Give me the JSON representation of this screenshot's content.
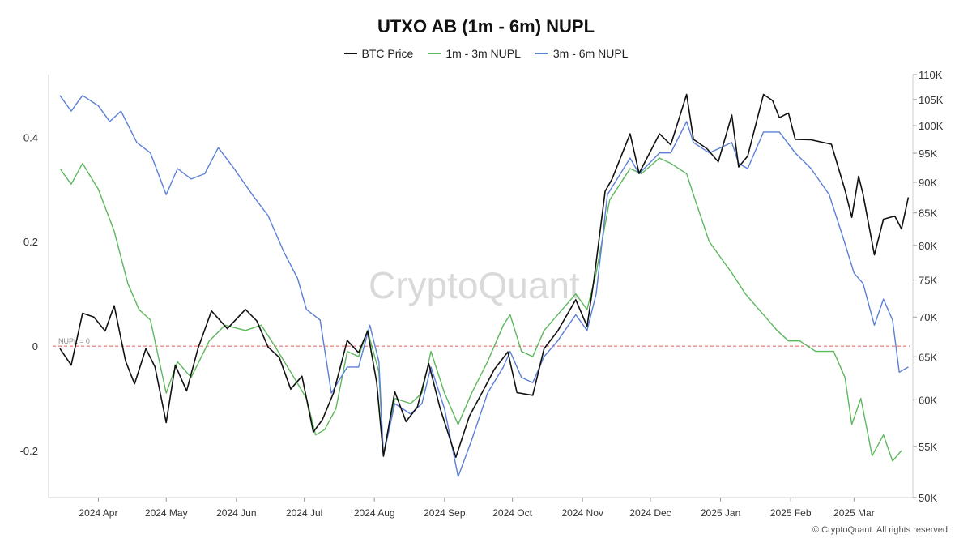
{
  "chart_data": {
    "type": "line",
    "title": "UTXO AB (1m - 6m) NUPL",
    "legend_placement": "top-center",
    "grid": false,
    "y_left_ticks": [
      "0.4",
      "0.2",
      "0",
      "-0.2"
    ],
    "y_left_tick_values": [
      0.4,
      0.2,
      0,
      -0.2
    ],
    "y_left_range": [
      -0.29,
      0.52
    ],
    "y_right_ticks": [
      "110K",
      "105K",
      "100K",
      "95K",
      "90K",
      "85K",
      "80K",
      "75K",
      "70K",
      "65K",
      "60K",
      "55K",
      "50K"
    ],
    "y_right_tick_values": [
      110000,
      105000,
      100000,
      95000,
      90000,
      85000,
      80000,
      75000,
      70000,
      65000,
      60000,
      55000,
      50000
    ],
    "y_right_range": [
      50000,
      110000
    ],
    "y_right_scale": "log",
    "x_range": [
      "2024-03-10",
      "2025-03-27"
    ],
    "x_ticks": [
      {
        "label": "2024 Apr",
        "date": "2024-04-01"
      },
      {
        "label": "2024 May",
        "date": "2024-05-01"
      },
      {
        "label": "2024 Jun",
        "date": "2024-06-01"
      },
      {
        "label": "2024 Jul",
        "date": "2024-07-01"
      },
      {
        "label": "2024 Aug",
        "date": "2024-08-01"
      },
      {
        "label": "2024 Sep",
        "date": "2024-09-01"
      },
      {
        "label": "2024 Oct",
        "date": "2024-10-01"
      },
      {
        "label": "2024 Nov",
        "date": "2024-11-01"
      },
      {
        "label": "2024 Dec",
        "date": "2024-12-01"
      },
      {
        "label": "2025 Jan",
        "date": "2025-01-01"
      },
      {
        "label": "2025 Feb",
        "date": "2025-02-01"
      },
      {
        "label": "2025 Mar",
        "date": "2025-03-01"
      }
    ],
    "reference_line": {
      "value": 0,
      "label": "NUPL = 0",
      "color": "#e05c5c"
    },
    "series": [
      {
        "name": "BTC Price",
        "axis": "right",
        "color": "#111111",
        "points": [
          [
            "2024-03-15",
            66000
          ],
          [
            "2024-03-20",
            64000
          ],
          [
            "2024-03-25",
            70500
          ],
          [
            "2024-03-30",
            70000
          ],
          [
            "2024-04-04",
            68200
          ],
          [
            "2024-04-08",
            71500
          ],
          [
            "2024-04-13",
            64500
          ],
          [
            "2024-04-17",
            61800
          ],
          [
            "2024-04-22",
            66000
          ],
          [
            "2024-04-26",
            63800
          ],
          [
            "2024-05-01",
            57500
          ],
          [
            "2024-05-05",
            64000
          ],
          [
            "2024-05-10",
            61000
          ],
          [
            "2024-05-15",
            66000
          ],
          [
            "2024-05-21",
            70800
          ],
          [
            "2024-05-28",
            68500
          ],
          [
            "2024-06-05",
            71000
          ],
          [
            "2024-06-10",
            69500
          ],
          [
            "2024-06-15",
            66200
          ],
          [
            "2024-06-20",
            64900
          ],
          [
            "2024-06-25",
            61200
          ],
          [
            "2024-06-30",
            62700
          ],
          [
            "2024-07-05",
            56500
          ],
          [
            "2024-07-09",
            57800
          ],
          [
            "2024-07-14",
            60800
          ],
          [
            "2024-07-20",
            67000
          ],
          [
            "2024-07-25",
            65500
          ],
          [
            "2024-07-29",
            68200
          ],
          [
            "2024-08-02",
            62000
          ],
          [
            "2024-08-05",
            54000
          ],
          [
            "2024-08-10",
            60900
          ],
          [
            "2024-08-15",
            57600
          ],
          [
            "2024-08-20",
            59200
          ],
          [
            "2024-08-25",
            64200
          ],
          [
            "2024-08-30",
            59100
          ],
          [
            "2024-09-06",
            53900
          ],
          [
            "2024-09-12",
            58200
          ],
          [
            "2024-09-18",
            61000
          ],
          [
            "2024-09-23",
            63500
          ],
          [
            "2024-09-29",
            65600
          ],
          [
            "2024-10-03",
            60800
          ],
          [
            "2024-10-10",
            60500
          ],
          [
            "2024-10-15",
            66000
          ],
          [
            "2024-10-21",
            68200
          ],
          [
            "2024-10-29",
            72300
          ],
          [
            "2024-11-03",
            68800
          ],
          [
            "2024-11-06",
            75000
          ],
          [
            "2024-11-11",
            88500
          ],
          [
            "2024-11-14",
            90500
          ],
          [
            "2024-11-22",
            98500
          ],
          [
            "2024-11-26",
            91500
          ],
          [
            "2024-12-05",
            98500
          ],
          [
            "2024-12-10",
            96500
          ],
          [
            "2024-12-17",
            106000
          ],
          [
            "2024-12-20",
            97500
          ],
          [
            "2024-12-26",
            95800
          ],
          [
            "2024-12-31",
            93500
          ],
          [
            "2025-01-06",
            102000
          ],
          [
            "2025-01-09",
            92600
          ],
          [
            "2025-01-13",
            94500
          ],
          [
            "2025-01-20",
            106000
          ],
          [
            "2025-01-24",
            104800
          ],
          [
            "2025-01-27",
            101500
          ],
          [
            "2025-01-31",
            102400
          ],
          [
            "2025-02-03",
            97500
          ],
          [
            "2025-02-10",
            97400
          ],
          [
            "2025-02-19",
            96600
          ],
          [
            "2025-02-25",
            88700
          ],
          [
            "2025-02-28",
            84300
          ],
          [
            "2025-03-03",
            91000
          ],
          [
            "2025-03-05",
            88000
          ],
          [
            "2025-03-10",
            78600
          ],
          [
            "2025-03-14",
            84000
          ],
          [
            "2025-03-19",
            84500
          ],
          [
            "2025-03-22",
            82500
          ],
          [
            "2025-03-25",
            87500
          ]
        ]
      },
      {
        "name": "1m - 3m NUPL",
        "axis": "left",
        "color": "#5cb85c",
        "points": [
          [
            "2024-03-15",
            0.34
          ],
          [
            "2024-03-20",
            0.31
          ],
          [
            "2024-03-25",
            0.35
          ],
          [
            "2024-04-01",
            0.3
          ],
          [
            "2024-04-08",
            0.22
          ],
          [
            "2024-04-14",
            0.12
          ],
          [
            "2024-04-19",
            0.07
          ],
          [
            "2024-04-24",
            0.05
          ],
          [
            "2024-05-01",
            -0.09
          ],
          [
            "2024-05-06",
            -0.03
          ],
          [
            "2024-05-12",
            -0.06
          ],
          [
            "2024-05-20",
            0.01
          ],
          [
            "2024-05-27",
            0.04
          ],
          [
            "2024-06-05",
            0.03
          ],
          [
            "2024-06-12",
            0.04
          ],
          [
            "2024-06-18",
            0.0
          ],
          [
            "2024-06-25",
            -0.05
          ],
          [
            "2024-07-02",
            -0.1
          ],
          [
            "2024-07-06",
            -0.17
          ],
          [
            "2024-07-10",
            -0.16
          ],
          [
            "2024-07-15",
            -0.12
          ],
          [
            "2024-07-20",
            -0.01
          ],
          [
            "2024-07-25",
            -0.02
          ],
          [
            "2024-07-29",
            0.03
          ],
          [
            "2024-08-03",
            -0.05
          ],
          [
            "2024-08-05",
            -0.21
          ],
          [
            "2024-08-10",
            -0.1
          ],
          [
            "2024-08-17",
            -0.11
          ],
          [
            "2024-08-22",
            -0.09
          ],
          [
            "2024-08-26",
            -0.01
          ],
          [
            "2024-09-01",
            -0.09
          ],
          [
            "2024-09-07",
            -0.15
          ],
          [
            "2024-09-13",
            -0.09
          ],
          [
            "2024-09-20",
            -0.03
          ],
          [
            "2024-09-27",
            0.04
          ],
          [
            "2024-09-30",
            0.06
          ],
          [
            "2024-10-05",
            -0.01
          ],
          [
            "2024-10-10",
            -0.02
          ],
          [
            "2024-10-15",
            0.03
          ],
          [
            "2024-10-21",
            0.06
          ],
          [
            "2024-10-29",
            0.1
          ],
          [
            "2024-11-03",
            0.07
          ],
          [
            "2024-11-07",
            0.14
          ],
          [
            "2024-11-13",
            0.28
          ],
          [
            "2024-11-22",
            0.34
          ],
          [
            "2024-11-27",
            0.33
          ],
          [
            "2024-12-05",
            0.36
          ],
          [
            "2024-12-10",
            0.35
          ],
          [
            "2024-12-17",
            0.33
          ],
          [
            "2024-12-20",
            0.29
          ],
          [
            "2024-12-27",
            0.2
          ],
          [
            "2025-01-06",
            0.14
          ],
          [
            "2025-01-12",
            0.1
          ],
          [
            "2025-01-20",
            0.06
          ],
          [
            "2025-01-26",
            0.03
          ],
          [
            "2025-01-31",
            0.01
          ],
          [
            "2025-02-05",
            0.01
          ],
          [
            "2025-02-12",
            -0.01
          ],
          [
            "2025-02-20",
            -0.01
          ],
          [
            "2025-02-25",
            -0.06
          ],
          [
            "2025-02-28",
            -0.15
          ],
          [
            "2025-03-04",
            -0.1
          ],
          [
            "2025-03-09",
            -0.21
          ],
          [
            "2025-03-14",
            -0.17
          ],
          [
            "2025-03-18",
            -0.22
          ],
          [
            "2025-03-22",
            -0.2
          ]
        ]
      },
      {
        "name": "3m - 6m NUPL",
        "axis": "left",
        "color": "#5b7fd6",
        "points": [
          [
            "2024-03-15",
            0.48
          ],
          [
            "2024-03-20",
            0.45
          ],
          [
            "2024-03-25",
            0.48
          ],
          [
            "2024-04-01",
            0.46
          ],
          [
            "2024-04-06",
            0.43
          ],
          [
            "2024-04-11",
            0.45
          ],
          [
            "2024-04-18",
            0.39
          ],
          [
            "2024-04-24",
            0.37
          ],
          [
            "2024-05-01",
            0.29
          ],
          [
            "2024-05-06",
            0.34
          ],
          [
            "2024-05-12",
            0.32
          ],
          [
            "2024-05-18",
            0.33
          ],
          [
            "2024-05-24",
            0.38
          ],
          [
            "2024-05-31",
            0.34
          ],
          [
            "2024-06-08",
            0.29
          ],
          [
            "2024-06-15",
            0.25
          ],
          [
            "2024-06-22",
            0.18
          ],
          [
            "2024-06-28",
            0.13
          ],
          [
            "2024-07-02",
            0.07
          ],
          [
            "2024-07-08",
            0.05
          ],
          [
            "2024-07-13",
            -0.09
          ],
          [
            "2024-07-20",
            -0.04
          ],
          [
            "2024-07-25",
            -0.04
          ],
          [
            "2024-07-30",
            0.04
          ],
          [
            "2024-08-03",
            -0.03
          ],
          [
            "2024-08-05",
            -0.21
          ],
          [
            "2024-08-10",
            -0.11
          ],
          [
            "2024-08-17",
            -0.13
          ],
          [
            "2024-08-22",
            -0.11
          ],
          [
            "2024-08-26",
            -0.04
          ],
          [
            "2024-09-01",
            -0.12
          ],
          [
            "2024-09-07",
            -0.25
          ],
          [
            "2024-09-13",
            -0.18
          ],
          [
            "2024-09-20",
            -0.09
          ],
          [
            "2024-09-27",
            -0.04
          ],
          [
            "2024-09-30",
            -0.01
          ],
          [
            "2024-10-05",
            -0.06
          ],
          [
            "2024-10-10",
            -0.07
          ],
          [
            "2024-10-15",
            -0.02
          ],
          [
            "2024-10-21",
            0.01
          ],
          [
            "2024-10-29",
            0.06
          ],
          [
            "2024-11-03",
            0.03
          ],
          [
            "2024-11-07",
            0.1
          ],
          [
            "2024-11-12",
            0.29
          ],
          [
            "2024-11-22",
            0.36
          ],
          [
            "2024-11-26",
            0.33
          ],
          [
            "2024-12-05",
            0.37
          ],
          [
            "2024-12-10",
            0.37
          ],
          [
            "2024-12-17",
            0.43
          ],
          [
            "2024-12-20",
            0.39
          ],
          [
            "2024-12-27",
            0.37
          ],
          [
            "2025-01-06",
            0.39
          ],
          [
            "2025-01-09",
            0.35
          ],
          [
            "2025-01-13",
            0.34
          ],
          [
            "2025-01-20",
            0.41
          ],
          [
            "2025-01-27",
            0.41
          ],
          [
            "2025-02-03",
            0.37
          ],
          [
            "2025-02-10",
            0.34
          ],
          [
            "2025-02-18",
            0.29
          ],
          [
            "2025-02-24",
            0.21
          ],
          [
            "2025-03-01",
            0.14
          ],
          [
            "2025-03-05",
            0.12
          ],
          [
            "2025-03-10",
            0.04
          ],
          [
            "2025-03-14",
            0.09
          ],
          [
            "2025-03-18",
            0.05
          ],
          [
            "2025-03-21",
            -0.05
          ],
          [
            "2025-03-25",
            -0.04
          ]
        ]
      }
    ]
  },
  "watermark": "CryptoQuant",
  "copyright": "© CryptoQuant. All rights reserved"
}
